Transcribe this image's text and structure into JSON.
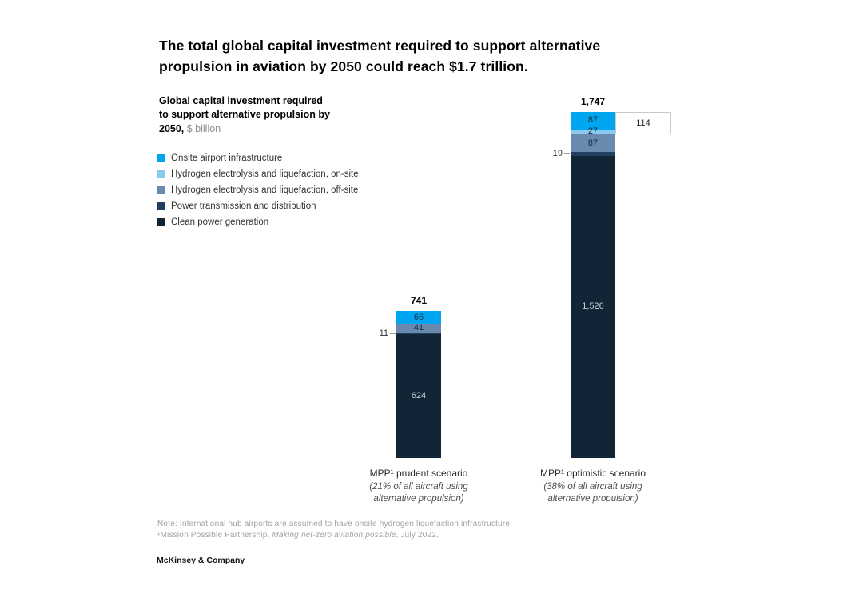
{
  "header": {
    "title": "The total global capital investment required to support alternative propulsion in aviation by 2050 could reach $1.7 trillion."
  },
  "subtitle": {
    "bold": "Global capital investment required to support alternative propulsion by 2050,",
    "unit": " $ billion"
  },
  "footnote": {
    "line1": "Note: International hub airports are assumed to have onsite hydrogen liquefaction infrastructure.",
    "line2_prefix": "¹Mission Possible Partnership, ",
    "line2_italic": "Making net-zero aviation possible",
    "line2_suffix": ", July 2022."
  },
  "footer": {
    "brand": "McKinsey & Company"
  },
  "chart_data": {
    "type": "bar",
    "stacked": true,
    "unit": "$ billion",
    "legend_position": "top-left",
    "grid": false,
    "legend": [
      {
        "label": "Onsite airport infrastructure",
        "color": "#00A6F0"
      },
      {
        "label": "Hydrogen electrolysis and liquefaction, on-site",
        "color": "#8BCAEE"
      },
      {
        "label": "Hydrogen electrolysis and liquefaction, off-site",
        "color": "#6A89AE"
      },
      {
        "label": "Power transmission and distribution",
        "color": "#21405F"
      },
      {
        "label": "Clean power generation",
        "color": "#112536"
      }
    ],
    "bars": [
      {
        "category": "MPP¹ prudent scenario",
        "subcategory": "(21% of all aircraft using alternative propulsion)",
        "total_label": "741",
        "total_value": 741,
        "segments": [
          {
            "series": "Onsite airport infrastructure",
            "value": 66,
            "label": "66",
            "label_position": "inside"
          },
          {
            "series": "Hydrogen electrolysis and liquefaction, off-site",
            "value": 41,
            "label": "41",
            "label_position": "inside"
          },
          {
            "series": "Power transmission and distribution",
            "value": 11,
            "label": "11",
            "label_position": "outside-left"
          },
          {
            "series": "Clean power generation",
            "value": 624,
            "label": "624",
            "label_position": "inside"
          }
        ]
      },
      {
        "category": "MPP¹ optimistic scenario",
        "subcategory": "(38% of all aircraft using alternative propulsion)",
        "total_label": "1,747",
        "total_value": 1747,
        "callout": {
          "label": "114",
          "value": 114,
          "spans_top_segments": 2
        },
        "segments": [
          {
            "series": "Onsite airport infrastructure",
            "value": 87,
            "label": "87",
            "label_position": "inside"
          },
          {
            "series": "Hydrogen electrolysis and liquefaction, on-site",
            "value": 27,
            "label": "27",
            "label_position": "inside"
          },
          {
            "series": "Hydrogen electrolysis and liquefaction, off-site",
            "value": 87,
            "label": "87",
            "label_position": "inside"
          },
          {
            "series": "Power transmission and distribution",
            "value": 19,
            "label": "19",
            "label_position": "outside-left"
          },
          {
            "series": "Clean power generation",
            "value": 1526,
            "label": "1,526",
            "label_position": "inside"
          }
        ]
      }
    ]
  }
}
